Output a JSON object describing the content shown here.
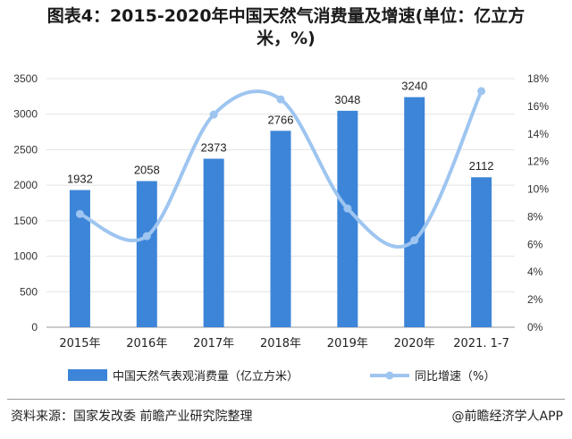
{
  "title_line1": "图表4：2015-2020年中国天然气消费量及增速(单位：亿立方",
  "title_line2": "米，%)",
  "source": "资料来源：国家发改委 前瞻产业研究院整理",
  "brand": "@前瞻经济学人APP",
  "colors": {
    "bar": "#3d85d8",
    "line": "#9ec5f0",
    "grid": "#e3e3e3",
    "axis": "#999999"
  },
  "chart_data": {
    "type": "bar",
    "categories": [
      "2015年",
      "2016年",
      "2017年",
      "2018年",
      "2019年",
      "2020年",
      "2021. 1-7"
    ],
    "series": [
      {
        "name": "中国天然气表观消费量（亿立方米）",
        "type": "bar",
        "axis": "left",
        "values": [
          1932,
          2058,
          2373,
          2766,
          3048,
          3240,
          2112
        ],
        "data_labels": [
          "1932",
          "2058",
          "2373",
          "2766",
          "3048",
          "3240",
          "2112"
        ]
      },
      {
        "name": "同比增速（%）",
        "type": "line",
        "axis": "right",
        "values": [
          8.2,
          6.6,
          15.4,
          16.5,
          8.6,
          6.3,
          17.1
        ]
      }
    ],
    "y_left": {
      "ylim": [
        0,
        3500
      ],
      "ticks": [
        "0",
        "500",
        "1000",
        "1500",
        "2000",
        "2500",
        "3000",
        "3500"
      ],
      "values": [
        0,
        500,
        1000,
        1500,
        2000,
        2500,
        3000,
        3500
      ]
    },
    "y_right": {
      "ylim": [
        0,
        18
      ],
      "ticks": [
        "0%",
        "2%",
        "4%",
        "6%",
        "8%",
        "10%",
        "12%",
        "14%",
        "16%",
        "18%"
      ],
      "values": [
        0,
        2,
        4,
        6,
        8,
        10,
        12,
        14,
        16,
        18
      ]
    },
    "grid": true,
    "legend": "bottom"
  }
}
